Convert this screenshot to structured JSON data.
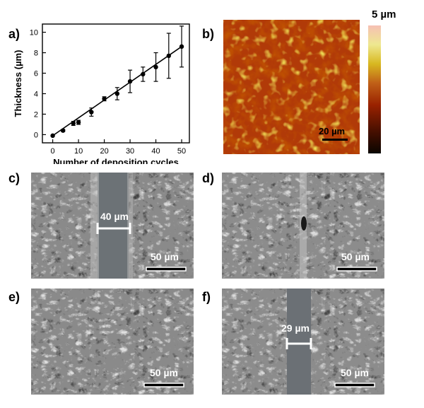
{
  "panels": {
    "a": "a)",
    "b": "b)",
    "c": "c)",
    "d": "d)",
    "e": "e)",
    "f": "f)"
  },
  "chart_data": {
    "type": "line",
    "xlabel": "Number of deposition cycles",
    "ylabel": "Thickness (µm)",
    "xlim": [
      -4,
      53
    ],
    "ylim": [
      -0.8,
      10.8
    ],
    "xticks": [
      0,
      10,
      20,
      30,
      40,
      50
    ],
    "yticks": [
      0,
      2,
      4,
      6,
      8,
      10
    ],
    "grid": false,
    "series": [
      {
        "points": [
          {
            "x": 0,
            "y": -0.1,
            "err": 0.05
          },
          {
            "x": 4,
            "y": 0.4,
            "err": 0.1
          },
          {
            "x": 8,
            "y": 1.1,
            "err": 0.2
          },
          {
            "x": 10,
            "y": 1.2,
            "err": 0.2
          },
          {
            "x": 15,
            "y": 2.2,
            "err": 0.4
          },
          {
            "x": 20,
            "y": 3.5,
            "err": 0.2
          },
          {
            "x": 25,
            "y": 4.0,
            "err": 0.6
          },
          {
            "x": 30,
            "y": 5.2,
            "err": 1.1
          },
          {
            "x": 35,
            "y": 5.9,
            "err": 0.7
          },
          {
            "x": 40,
            "y": 6.6,
            "err": 1.4
          },
          {
            "x": 45,
            "y": 7.7,
            "err": 2.2
          },
          {
            "x": 50,
            "y": 8.6,
            "err": 2.0
          }
        ],
        "fit": [
          [
            0,
            -0.1
          ],
          [
            50,
            8.6
          ]
        ]
      }
    ]
  },
  "afm": {
    "colorbar_max": "5 µm",
    "scalebar": "20 µm",
    "colors": [
      "#1a0a00",
      "#5a1200",
      "#9e2a00",
      "#c8641a",
      "#e0c020",
      "#f4f0a0",
      "#f5c0b0"
    ]
  },
  "sem": {
    "c": {
      "scalebar": "50 µm",
      "gap": "40 µm"
    },
    "d": {
      "scalebar": "50 µm"
    },
    "e": {
      "scalebar": "50 µm"
    },
    "f": {
      "scalebar": "50 µm",
      "gap": "29 µm"
    }
  }
}
